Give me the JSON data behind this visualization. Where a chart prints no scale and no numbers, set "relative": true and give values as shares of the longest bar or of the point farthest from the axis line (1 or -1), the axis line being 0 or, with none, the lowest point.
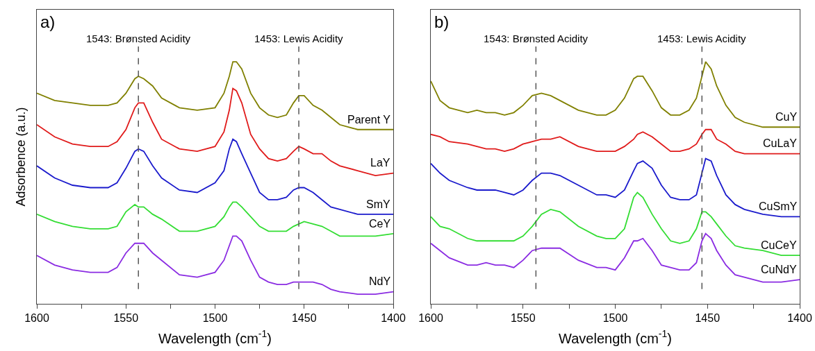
{
  "chart_data": [
    {
      "type": "line",
      "title": "a)",
      "xlabel": "Wavelength (cm$^{-1}$)",
      "ylabel": "Adsorbence (a.u.)",
      "relative": true,
      "grid": false,
      "legend": false,
      "line_style": "solid",
      "marker": "none",
      "x": [
        1600,
        1590,
        1580,
        1570,
        1560,
        1555,
        1550,
        1545,
        1543,
        1540,
        1535,
        1530,
        1520,
        1510,
        1500,
        1495,
        1492,
        1490,
        1488,
        1485,
        1480,
        1475,
        1470,
        1465,
        1460,
        1456,
        1453,
        1450,
        1445,
        1440,
        1435,
        1430,
        1420,
        1410,
        1400
      ],
      "xlim": [
        1600,
        1400
      ],
      "xticks": [
        1600,
        {
          "value": 1575,
          "label": null
        },
        1550,
        {
          "value": 1525,
          "label": null
        },
        1500,
        {
          "value": 1475,
          "label": null
        },
        1450,
        {
          "value": 1425,
          "label": null
        },
        1400
      ],
      "ref_lines": [
        {
          "axis": "x",
          "value": 1543,
          "label": "1543: Brønsted Acidity",
          "color": "#555555",
          "line_style": "dashed"
        },
        {
          "axis": "x",
          "value": 1453,
          "label": "1453: Lewis Acidity",
          "color": "#555555",
          "line_style": "dashed"
        }
      ],
      "series": [
        {
          "name": "Parent Y",
          "color": "#808000",
          "values": [
            0.87,
            0.84,
            0.83,
            0.82,
            0.82,
            0.83,
            0.87,
            0.93,
            0.94,
            0.93,
            0.9,
            0.85,
            0.81,
            0.8,
            0.81,
            0.87,
            0.94,
            1.0,
            1.0,
            0.97,
            0.87,
            0.81,
            0.78,
            0.77,
            0.78,
            0.83,
            0.86,
            0.86,
            0.82,
            0.8,
            0.77,
            0.74,
            0.72,
            0.72,
            0.72
          ]
        },
        {
          "name": "LaY",
          "color": "#e01a1a",
          "values": [
            0.74,
            0.69,
            0.66,
            0.65,
            0.65,
            0.67,
            0.72,
            0.81,
            0.83,
            0.83,
            0.75,
            0.68,
            0.64,
            0.63,
            0.65,
            0.71,
            0.8,
            0.89,
            0.88,
            0.83,
            0.7,
            0.64,
            0.6,
            0.59,
            0.6,
            0.63,
            0.65,
            0.64,
            0.62,
            0.62,
            0.59,
            0.57,
            0.55,
            0.53,
            0.54
          ]
        },
        {
          "name": "SmY",
          "color": "#1a1acc",
          "values": [
            0.57,
            0.52,
            0.49,
            0.48,
            0.48,
            0.5,
            0.56,
            0.63,
            0.64,
            0.63,
            0.57,
            0.52,
            0.47,
            0.46,
            0.5,
            0.55,
            0.64,
            0.68,
            0.67,
            0.62,
            0.54,
            0.46,
            0.43,
            0.43,
            0.44,
            0.47,
            0.48,
            0.48,
            0.46,
            0.43,
            0.4,
            0.39,
            0.37,
            0.37,
            0.37
          ]
        },
        {
          "name": "CeY",
          "color": "#33dd33",
          "values": [
            0.37,
            0.34,
            0.32,
            0.31,
            0.31,
            0.32,
            0.38,
            0.41,
            0.4,
            0.4,
            0.37,
            0.35,
            0.3,
            0.3,
            0.32,
            0.36,
            0.4,
            0.42,
            0.42,
            0.4,
            0.36,
            0.32,
            0.3,
            0.3,
            0.3,
            0.32,
            0.33,
            0.34,
            0.33,
            0.32,
            0.3,
            0.28,
            0.28,
            0.28,
            0.29
          ]
        },
        {
          "name": "NdY",
          "color": "#8a2be2",
          "values": [
            0.2,
            0.16,
            0.14,
            0.13,
            0.13,
            0.15,
            0.21,
            0.25,
            0.25,
            0.25,
            0.21,
            0.18,
            0.12,
            0.11,
            0.13,
            0.18,
            0.24,
            0.28,
            0.28,
            0.26,
            0.18,
            0.11,
            0.09,
            0.08,
            0.08,
            0.09,
            0.09,
            0.09,
            0.09,
            0.08,
            0.06,
            0.05,
            0.04,
            0.04,
            0.05
          ]
        }
      ]
    },
    {
      "type": "line",
      "title": "b)",
      "xlabel": "Wavelength (cm$^{-1}$)",
      "relative": true,
      "grid": false,
      "legend": false,
      "line_style": "solid",
      "marker": "none",
      "x": [
        1600,
        1595,
        1590,
        1580,
        1575,
        1570,
        1565,
        1560,
        1555,
        1550,
        1545,
        1540,
        1535,
        1530,
        1520,
        1510,
        1505,
        1500,
        1495,
        1490,
        1488,
        1485,
        1480,
        1475,
        1470,
        1465,
        1460,
        1456,
        1453,
        1451,
        1448,
        1445,
        1440,
        1435,
        1430,
        1420,
        1410,
        1400
      ],
      "xlim": [
        1600,
        1400
      ],
      "xticks": [
        1600,
        {
          "value": 1575,
          "label": null
        },
        1550,
        {
          "value": 1525,
          "label": null
        },
        1500,
        {
          "value": 1475,
          "label": null
        },
        1450,
        {
          "value": 1425,
          "label": null
        },
        1400
      ],
      "ref_lines": [
        {
          "axis": "x",
          "value": 1543,
          "label": "1543: Brønsted Acidity",
          "color": "#555555",
          "line_style": "dashed"
        },
        {
          "axis": "x",
          "value": 1453,
          "label": "1453: Lewis Acidity",
          "color": "#555555",
          "line_style": "dashed"
        }
      ],
      "series": [
        {
          "name": "CuY",
          "color": "#808000",
          "values": [
            0.92,
            0.84,
            0.81,
            0.79,
            0.8,
            0.79,
            0.79,
            0.78,
            0.79,
            0.82,
            0.86,
            0.87,
            0.86,
            0.84,
            0.8,
            0.78,
            0.78,
            0.8,
            0.85,
            0.93,
            0.94,
            0.94,
            0.88,
            0.81,
            0.78,
            0.78,
            0.8,
            0.85,
            0.94,
            1.0,
            0.97,
            0.9,
            0.82,
            0.77,
            0.75,
            0.73,
            0.73,
            0.73
          ]
        },
        {
          "name": "CuLaY",
          "color": "#e01a1a",
          "values": [
            0.7,
            0.69,
            0.67,
            0.66,
            0.65,
            0.64,
            0.64,
            0.63,
            0.64,
            0.66,
            0.67,
            0.68,
            0.68,
            0.69,
            0.65,
            0.63,
            0.63,
            0.63,
            0.65,
            0.68,
            0.7,
            0.71,
            0.69,
            0.66,
            0.63,
            0.63,
            0.64,
            0.66,
            0.7,
            0.72,
            0.72,
            0.68,
            0.66,
            0.63,
            0.62,
            0.62,
            0.62,
            0.62
          ]
        },
        {
          "name": "CuSmY",
          "color": "#1a1acc",
          "values": [
            0.58,
            0.54,
            0.51,
            0.48,
            0.47,
            0.47,
            0.47,
            0.46,
            0.45,
            0.47,
            0.51,
            0.54,
            0.54,
            0.53,
            0.49,
            0.45,
            0.45,
            0.44,
            0.47,
            0.55,
            0.58,
            0.59,
            0.56,
            0.49,
            0.44,
            0.43,
            0.43,
            0.45,
            0.54,
            0.6,
            0.59,
            0.53,
            0.45,
            0.41,
            0.39,
            0.37,
            0.36,
            0.36
          ]
        },
        {
          "name": "CuCeY",
          "color": "#33dd33",
          "values": [
            0.36,
            0.32,
            0.31,
            0.27,
            0.26,
            0.26,
            0.26,
            0.26,
            0.26,
            0.28,
            0.32,
            0.37,
            0.39,
            0.38,
            0.32,
            0.28,
            0.27,
            0.27,
            0.31,
            0.44,
            0.46,
            0.44,
            0.37,
            0.31,
            0.26,
            0.25,
            0.26,
            0.31,
            0.38,
            0.38,
            0.36,
            0.33,
            0.28,
            0.24,
            0.23,
            0.22,
            0.2,
            0.2
          ]
        },
        {
          "name": "CuNdY",
          "color": "#8a2be2",
          "values": [
            0.25,
            0.22,
            0.19,
            0.16,
            0.16,
            0.17,
            0.16,
            0.16,
            0.15,
            0.18,
            0.22,
            0.23,
            0.23,
            0.23,
            0.18,
            0.15,
            0.15,
            0.14,
            0.19,
            0.26,
            0.26,
            0.27,
            0.22,
            0.16,
            0.15,
            0.14,
            0.14,
            0.17,
            0.26,
            0.29,
            0.27,
            0.22,
            0.16,
            0.12,
            0.11,
            0.09,
            0.09,
            0.1
          ]
        }
      ]
    }
  ]
}
